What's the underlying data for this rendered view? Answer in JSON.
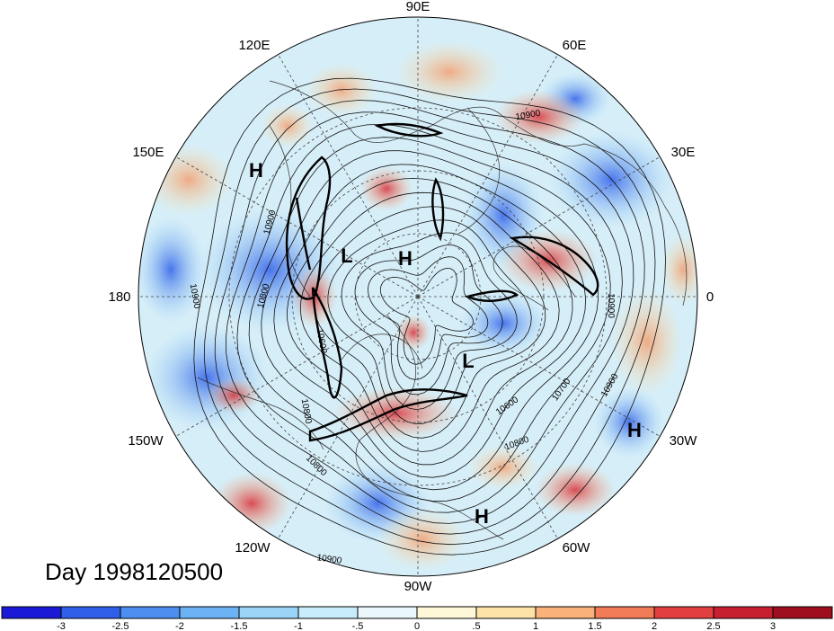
{
  "map": {
    "date_label": "Day 1998120500",
    "longitude_labels": [
      "90E",
      "60E",
      "30E",
      "0",
      "30W",
      "60W",
      "90W",
      "120W",
      "150W",
      "180",
      "150E",
      "120E"
    ],
    "contour_labels": [
      "10900",
      "10900",
      "10800",
      "10900",
      "10800",
      "10600",
      "10600",
      "10700",
      "10900",
      "10800",
      "10900",
      "10900",
      "10800"
    ],
    "pressure_centers": [
      "H",
      "L",
      "H",
      "L",
      "H",
      "H"
    ]
  },
  "colorbar": {
    "tick_labels": [
      "-3",
      "-2.5",
      "-2",
      "-1.5",
      "-1",
      "-.5",
      "0",
      ".5",
      "1",
      "1.5",
      "2",
      "2.5",
      "3"
    ],
    "colors": [
      "#1a1ad6",
      "#2f5fe8",
      "#4c8ff0",
      "#6cb3f5",
      "#9ad5f7",
      "#c8ecfa",
      "#eaf8fc",
      "#fff8d8",
      "#fde3a8",
      "#f8b27a",
      "#f27b58",
      "#e24040",
      "#c71f30",
      "#9e0e1e"
    ]
  }
}
